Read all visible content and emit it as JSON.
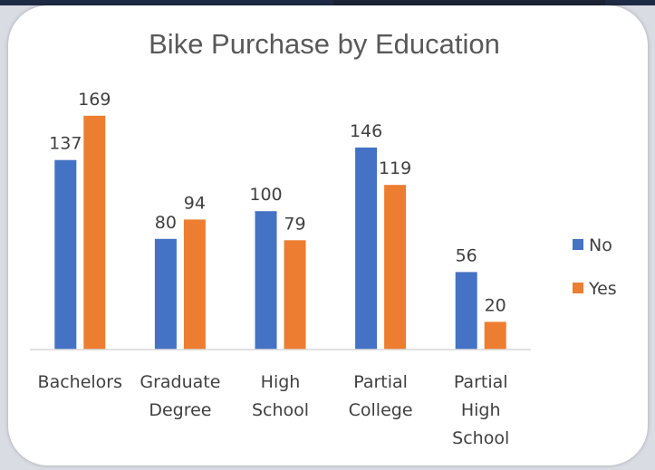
{
  "chart_data": {
    "type": "bar",
    "title": "Bike Purchase by Education",
    "categories": [
      [
        "Bachelors"
      ],
      [
        "Graduate",
        "Degree"
      ],
      [
        "High",
        "School"
      ],
      [
        "Partial",
        "College"
      ],
      [
        "Partial",
        "High",
        "School"
      ]
    ],
    "series": [
      {
        "name": "No",
        "color": "#4472C4",
        "values": [
          137,
          80,
          100,
          146,
          56
        ]
      },
      {
        "name": "Yes",
        "color": "#ED7D31",
        "values": [
          169,
          94,
          79,
          119,
          20
        ]
      }
    ],
    "ylim": [
      0,
      180
    ],
    "grid": false,
    "legend_position": "right",
    "axis_color": "#d9d9d9"
  }
}
